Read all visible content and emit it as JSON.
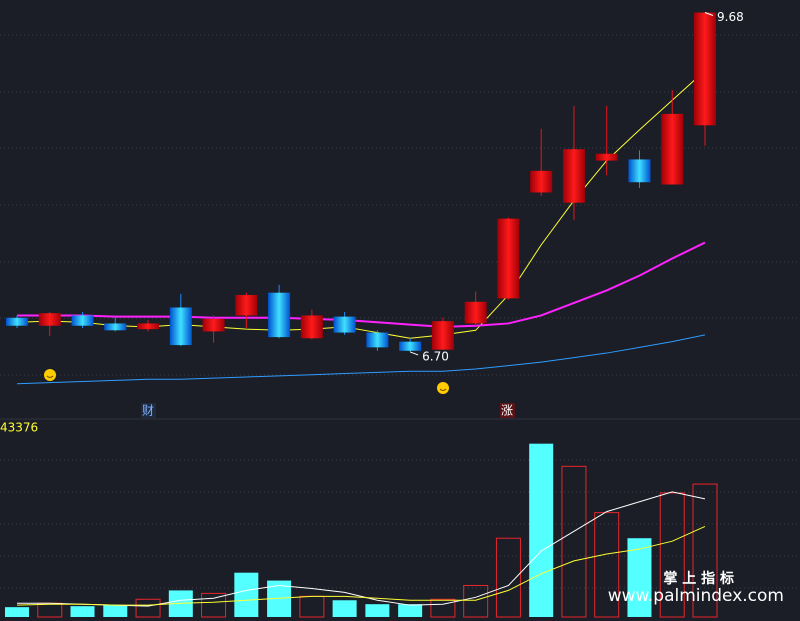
{
  "chart_data": [
    {
      "type": "candlestick",
      "open": [
        7.0,
        6.93,
        7.02,
        6.95,
        6.9,
        7.09,
        6.88,
        7.02,
        7.22,
        6.82,
        7.01,
        6.87,
        6.79,
        6.72,
        6.95,
        7.17,
        8.1,
        8.01,
        8.38,
        8.39,
        8.17,
        8.69
      ],
      "close": [
        6.93,
        7.04,
        6.93,
        6.89,
        6.95,
        6.76,
        6.99,
        7.2,
        6.83,
        7.02,
        6.87,
        6.74,
        6.71,
        6.97,
        7.14,
        7.87,
        8.29,
        8.48,
        8.44,
        8.19,
        8.79,
        9.68
      ],
      "high": [
        7.02,
        7.05,
        7.05,
        7.0,
        6.98,
        7.21,
        7.02,
        7.22,
        7.29,
        7.07,
        7.05,
        6.89,
        6.82,
        7.0,
        7.23,
        7.88,
        8.66,
        8.86,
        8.86,
        8.47,
        9.0,
        9.68
      ],
      "low": [
        6.91,
        6.84,
        6.91,
        6.88,
        6.88,
        6.75,
        6.78,
        6.91,
        6.82,
        6.81,
        6.85,
        6.71,
        6.7,
        6.72,
        6.93,
        7.16,
        8.07,
        7.86,
        8.25,
        8.14,
        8.17,
        8.51
      ],
      "up_color": "#e8141c",
      "down_color": "#1a8cff",
      "series": [
        {
          "color": "#ffff33",
          "values": [
            6.96,
            6.97,
            6.96,
            6.93,
            6.92,
            6.94,
            6.92,
            6.9,
            6.89,
            6.9,
            6.92,
            6.87,
            6.82,
            6.85,
            6.89,
            7.2,
            7.64,
            8.03,
            8.38,
            8.65,
            8.91,
            9.17
          ]
        },
        {
          "color": "#ff22ff",
          "values": [
            7.02,
            7.02,
            7.02,
            7.01,
            7.01,
            7.01,
            7.0,
            7.0,
            7.0,
            6.99,
            6.98,
            6.96,
            6.94,
            6.92,
            6.93,
            6.95,
            7.02,
            7.13,
            7.24,
            7.37,
            7.52,
            7.66
          ]
        },
        {
          "color": "#2e9cff",
          "values": [
            6.42,
            6.43,
            6.44,
            6.45,
            6.46,
            6.46,
            6.47,
            6.48,
            6.49,
            6.5,
            6.51,
            6.52,
            6.53,
            6.53,
            6.55,
            6.58,
            6.61,
            6.65,
            6.69,
            6.74,
            6.79,
            6.85
          ]
        }
      ],
      "annotations": [
        {
          "label": "9.68",
          "value": 9.68
        },
        {
          "label": "6.70",
          "value": 6.7
        }
      ],
      "markers": [
        "财",
        "涨"
      ],
      "ylim": [
        6.19,
        9.79
      ]
    },
    {
      "type": "bar",
      "values": [
        2260,
        3164,
        2486,
        2712,
        4068,
        6102,
        5424,
        10170,
        8362,
        4746,
        3842,
        2938,
        2938,
        4068,
        7232,
        18080,
        39776,
        34578,
        23956,
        18080,
        28476,
        30510
      ],
      "hollow": [
        false,
        true,
        false,
        false,
        true,
        false,
        true,
        false,
        false,
        true,
        false,
        false,
        false,
        true,
        true,
        true,
        false,
        true,
        true,
        false,
        true,
        true
      ],
      "colors": [
        "#54ffff",
        "#e8252b",
        "#54ffff",
        "#54ffff",
        "#e8252b",
        "#54ffff",
        "#e8252b",
        "#54ffff",
        "#54ffff",
        "#e8252b",
        "#54ffff",
        "#54ffff",
        "#54ffff",
        "#e8252b",
        "#e8252b",
        "#e8252b",
        "#54ffff",
        "#e8252b",
        "#e8252b",
        "#54ffff",
        "#e8252b",
        "#e8252b"
      ],
      "series": [
        {
          "color": "#ffffff",
          "values": [
            3164,
            3164,
            2938,
            2712,
            2486,
            3842,
            4294,
            6102,
            7232,
            6554,
            5650,
            3842,
            2712,
            2938,
            4520,
            7232,
            15142,
            19662,
            24182,
            26442,
            28702,
            27120
          ]
        },
        {
          "color": "#ffff33",
          "values": [
            2712,
            2938,
            2938,
            2712,
            2712,
            3164,
            3390,
            3842,
            4294,
            4746,
            4746,
            4294,
            3842,
            3842,
            3842,
            6102,
            9944,
            12882,
            14464,
            15594,
            17402,
            20792
          ]
        }
      ],
      "ylim": [
        0,
        43376
      ],
      "yticks": [
        43376
      ]
    }
  ],
  "watermark": {
    "title": "掌 上 指 标",
    "url": "www.palmindex.com"
  }
}
